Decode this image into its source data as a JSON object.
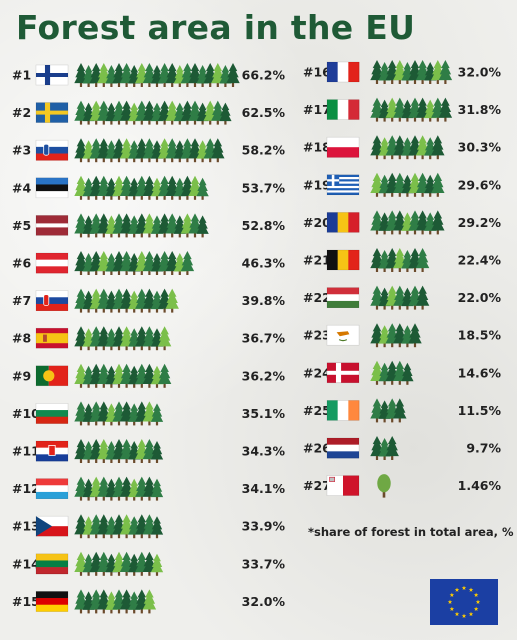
{
  "page": {
    "title": "Forest area in the EU",
    "footnote": "*share of forest in total area, %"
  },
  "colors": {
    "title": "#1f5a36",
    "tree_dark": "#1d5a35",
    "tree_mid": "#2f7d46",
    "tree_light": "#7bbf4a"
  },
  "chart_data": {
    "type": "bar",
    "title": "Forest area in the EU",
    "unit": "%",
    "note": "*share of forest in total area, %",
    "legend_icon": "eu-flag",
    "columns": [
      {
        "ranks": [
          "#1",
          "#2",
          "#3",
          "#4",
          "#5",
          "#6",
          "#7",
          "#8",
          "#9",
          "#10",
          "#11",
          "#12",
          "#13",
          "#14",
          "#15"
        ],
        "flags": [
          "finland",
          "sweden",
          "slovenia",
          "estonia",
          "latvia",
          "austria",
          "slovakia",
          "spain",
          "portugal",
          "bulgaria",
          "croatia",
          "luxembourg",
          "czechia",
          "lithuania",
          "germany"
        ],
        "values": [
          66.2,
          62.5,
          58.2,
          53.7,
          52.8,
          46.3,
          39.8,
          36.7,
          36.2,
          35.1,
          34.3,
          34.1,
          33.9,
          33.7,
          32.0
        ],
        "labels": [
          "66.2%",
          "62.5%",
          "58.2%",
          "53.7%",
          "52.8%",
          "46.3%",
          "39.8%",
          "36.7%",
          "36.2%",
          "35.1%",
          "34.3%",
          "34.1%",
          "33.9%",
          "33.7%",
          "32.0%"
        ]
      },
      {
        "ranks": [
          "#16",
          "#17",
          "#18",
          "#19",
          "#20",
          "#21",
          "#22",
          "#23",
          "#24",
          "#25",
          "#26",
          "#27"
        ],
        "flags": [
          "france",
          "italy",
          "poland",
          "greece",
          "romania",
          "belgium",
          "hungary",
          "cyprus",
          "denmark",
          "ireland",
          "netherlands",
          "malta"
        ],
        "values": [
          32.0,
          31.8,
          30.3,
          29.6,
          29.2,
          22.4,
          22.0,
          18.5,
          14.6,
          11.5,
          9.7,
          1.46
        ],
        "labels": [
          "32.0%",
          "31.8%",
          "30.3%",
          "29.6%",
          "29.2%",
          "22.4%",
          "22.0%",
          "18.5%",
          "14.6%",
          "11.5%",
          "9.7%",
          "1.46%"
        ]
      }
    ]
  }
}
